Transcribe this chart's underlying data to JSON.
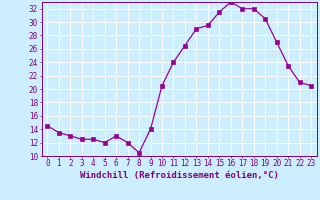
{
  "x": [
    0,
    1,
    2,
    3,
    4,
    5,
    6,
    7,
    8,
    9,
    10,
    11,
    12,
    13,
    14,
    15,
    16,
    17,
    18,
    19,
    20,
    21,
    22,
    23
  ],
  "y": [
    14.5,
    13.5,
    13.0,
    12.5,
    12.5,
    12.0,
    13.0,
    12.0,
    10.5,
    14.0,
    20.5,
    24.0,
    26.5,
    29.0,
    29.5,
    31.5,
    33.0,
    32.0,
    32.0,
    30.5,
    27.0,
    23.5,
    21.0,
    20.5
  ],
  "line_color": "#990099",
  "marker": "s",
  "marker_size": 2.5,
  "bg_color": "#cceeff",
  "grid_color": "#ffffff",
  "xlabel": "Windchill (Refroidissement éolien,°C)",
  "ylim": [
    10,
    33
  ],
  "xlim": [
    -0.5,
    23.5
  ],
  "yticks": [
    10,
    12,
    14,
    16,
    18,
    20,
    22,
    24,
    26,
    28,
    30,
    32
  ],
  "xticks": [
    0,
    1,
    2,
    3,
    4,
    5,
    6,
    7,
    8,
    9,
    10,
    11,
    12,
    13,
    14,
    15,
    16,
    17,
    18,
    19,
    20,
    21,
    22,
    23
  ],
  "tick_label_size": 5.5,
  "xlabel_size": 6.5,
  "line_color_hex": "#800080",
  "axis_color": "#800080",
  "tick_color": "#800080"
}
